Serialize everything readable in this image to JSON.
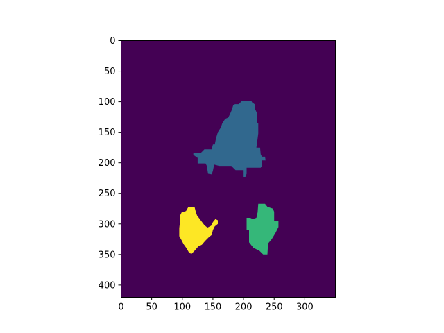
{
  "chart_data": {
    "type": "heatmap",
    "title": "",
    "xlabel": "",
    "ylabel": "",
    "x_range": [
      0,
      350
    ],
    "y_range": [
      0,
      420
    ],
    "y_inverted": true,
    "x_ticks": [
      "0",
      "50",
      "100",
      "150",
      "200",
      "250",
      "300"
    ],
    "y_ticks": [
      "0",
      "50",
      "100",
      "150",
      "200",
      "250",
      "300",
      "350",
      "400"
    ],
    "grid": false,
    "colormap": "viridis",
    "colors": {
      "background": "#440154",
      "label_1": "#31688e",
      "label_2": "#35b779",
      "label_3": "#fde725"
    },
    "regions": [
      {
        "label_value": 1,
        "color": "#31688e",
        "polygon": [
          [
            197,
            99
          ],
          [
            213,
            99
          ],
          [
            214,
            101
          ],
          [
            218,
            104
          ],
          [
            219,
            112
          ],
          [
            222,
            119
          ],
          [
            222,
            135
          ],
          [
            224,
            135
          ],
          [
            224,
            152
          ],
          [
            223,
            160
          ],
          [
            221,
            175
          ],
          [
            227,
            175
          ],
          [
            228,
            186
          ],
          [
            230,
            190
          ],
          [
            235,
            190
          ],
          [
            236,
            196
          ],
          [
            230,
            196
          ],
          [
            230,
            205
          ],
          [
            228,
            208
          ],
          [
            205,
            208
          ],
          [
            205,
            218
          ],
          [
            203,
            223
          ],
          [
            199,
            223
          ],
          [
            199,
            212
          ],
          [
            187,
            212
          ],
          [
            180,
            205
          ],
          [
            160,
            205
          ],
          [
            152,
            203
          ],
          [
            150,
            213
          ],
          [
            148,
            219
          ],
          [
            142,
            218
          ],
          [
            140,
            205
          ],
          [
            138,
            201
          ],
          [
            125,
            201
          ],
          [
            125,
            192
          ],
          [
            118,
            187
          ],
          [
            118,
            184
          ],
          [
            130,
            184
          ],
          [
            136,
            178
          ],
          [
            148,
            178
          ],
          [
            150,
            170
          ],
          [
            153,
            170
          ],
          [
            155,
            160
          ],
          [
            158,
            150
          ],
          [
            163,
            142
          ],
          [
            165,
            136
          ],
          [
            170,
            128
          ],
          [
            175,
            126
          ],
          [
            178,
            120
          ],
          [
            181,
            113
          ],
          [
            183,
            106
          ],
          [
            186,
            104
          ],
          [
            192,
            104
          ]
        ]
      },
      {
        "label_value": 2,
        "color": "#35b779",
        "polygon": [
          [
            224,
            267
          ],
          [
            235,
            267
          ],
          [
            239,
            272
          ],
          [
            248,
            275
          ],
          [
            250,
            280
          ],
          [
            250,
            295
          ],
          [
            257,
            295
          ],
          [
            257,
            305
          ],
          [
            252,
            315
          ],
          [
            246,
            325
          ],
          [
            240,
            332
          ],
          [
            239,
            350
          ],
          [
            232,
            350
          ],
          [
            226,
            344
          ],
          [
            216,
            339
          ],
          [
            209,
            330
          ],
          [
            209,
            310
          ],
          [
            205,
            310
          ],
          [
            205,
            290
          ],
          [
            211,
            290
          ],
          [
            215,
            292
          ],
          [
            221,
            290
          ],
          [
            223,
            281
          ]
        ]
      },
      {
        "label_value": 3,
        "color": "#fde725",
        "polygon": [
          [
            110,
            272
          ],
          [
            120,
            272
          ],
          [
            122,
            280
          ],
          [
            124,
            286
          ],
          [
            130,
            294
          ],
          [
            136,
            302
          ],
          [
            141,
            306
          ],
          [
            147,
            303
          ],
          [
            150,
            297
          ],
          [
            154,
            292
          ],
          [
            158,
            294
          ],
          [
            158,
            300
          ],
          [
            153,
            304
          ],
          [
            150,
            310
          ],
          [
            148,
            318
          ],
          [
            143,
            322
          ],
          [
            137,
            328
          ],
          [
            132,
            334
          ],
          [
            126,
            337
          ],
          [
            120,
            344
          ],
          [
            115,
            349
          ],
          [
            111,
            347
          ],
          [
            107,
            340
          ],
          [
            102,
            333
          ],
          [
            99,
            327
          ],
          [
            95,
            320
          ],
          [
            95,
            307
          ],
          [
            96,
            298
          ],
          [
            96,
            287
          ],
          [
            99,
            281
          ],
          [
            106,
            279
          ]
        ]
      }
    ]
  }
}
